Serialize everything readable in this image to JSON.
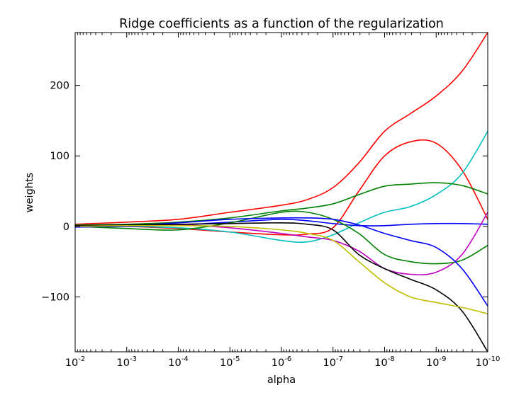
{
  "chart_data": {
    "type": "line",
    "title": "Ridge coefficients as a function of the regularization",
    "xlabel": "alpha",
    "ylabel": "weights",
    "xscale": "log",
    "x_reversed": true,
    "xlim": [
      0.01,
      1e-10
    ],
    "ylim": [
      -178,
      275
    ],
    "grid": false,
    "legend": "none",
    "x_ticks": [
      {
        "value": 0.01,
        "base": "10",
        "exp": "-2"
      },
      {
        "value": 0.001,
        "base": "10",
        "exp": "-3"
      },
      {
        "value": 0.0001,
        "base": "10",
        "exp": "-4"
      },
      {
        "value": 1e-05,
        "base": "10",
        "exp": "-5"
      },
      {
        "value": 1e-06,
        "base": "10",
        "exp": "-6"
      },
      {
        "value": 1e-07,
        "base": "10",
        "exp": "-7"
      },
      {
        "value": 1e-08,
        "base": "10",
        "exp": "-8"
      },
      {
        "value": 1e-09,
        "base": "10",
        "exp": "-9"
      },
      {
        "value": 1e-10,
        "base": "10",
        "exp": "-10"
      }
    ],
    "y_ticks": [
      {
        "value": 200,
        "label": "200"
      },
      {
        "value": 100,
        "label": "100"
      },
      {
        "value": 0,
        "label": "0"
      },
      {
        "value": -100,
        "label": "−100"
      }
    ],
    "x_log10": [
      -2,
      -3,
      -4,
      -5,
      -6,
      -6.5,
      -7,
      -7.5,
      -8,
      -8.5,
      -9,
      -9.5,
      -10
    ],
    "series": [
      {
        "name": "coef-red-top",
        "color": "#ff0000",
        "values": [
          3,
          6,
          10,
          20,
          30,
          38,
          55,
          90,
          135,
          160,
          185,
          220,
          275
        ]
      },
      {
        "name": "coef-red-peak",
        "color": "#ff0000",
        "values": [
          2,
          0,
          -3,
          -8,
          -12,
          -11,
          -2,
          50,
          100,
          120,
          118,
          80,
          10
        ]
      },
      {
        "name": "coef-cyan",
        "color": "#00bfbf",
        "values": [
          0,
          0,
          -2,
          -8,
          -20,
          -22,
          -12,
          5,
          20,
          28,
          45,
          75,
          135
        ]
      },
      {
        "name": "coef-green-upper",
        "color": "#008000",
        "values": [
          2,
          3,
          6,
          12,
          22,
          26,
          32,
          45,
          57,
          60,
          62,
          58,
          46
        ]
      },
      {
        "name": "coef-blue-flat",
        "color": "#0000ff",
        "values": [
          -1,
          0,
          2,
          6,
          10,
          8,
          4,
          1,
          1,
          3,
          4,
          4,
          3
        ]
      },
      {
        "name": "coef-magenta",
        "color": "#bf00bf",
        "values": [
          0,
          1,
          2,
          -2,
          -10,
          -15,
          -20,
          -35,
          -60,
          -68,
          -65,
          -40,
          20
        ]
      },
      {
        "name": "coef-green-lower",
        "color": "#008000",
        "values": [
          0,
          -3,
          -5,
          5,
          20,
          20,
          10,
          -10,
          -40,
          -50,
          -53,
          -48,
          -27
        ]
      },
      {
        "name": "coef-blue-lower",
        "color": "#0000ff",
        "values": [
          -1,
          1,
          5,
          10,
          12,
          12,
          10,
          2,
          -10,
          -20,
          -30,
          -60,
          -113
        ]
      },
      {
        "name": "coef-black",
        "color": "#000000",
        "values": [
          1,
          2,
          3,
          4,
          5,
          3,
          -5,
          -40,
          -60,
          -75,
          -90,
          -120,
          -178
        ]
      },
      {
        "name": "coef-yellow",
        "color": "#bfbf00",
        "values": [
          0,
          1,
          1,
          0,
          -5,
          -10,
          -20,
          -50,
          -80,
          -100,
          -108,
          -115,
          -124
        ]
      }
    ]
  }
}
